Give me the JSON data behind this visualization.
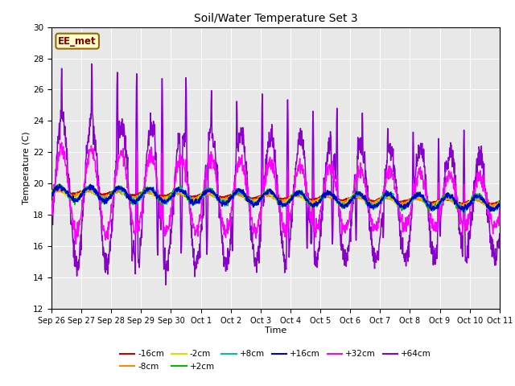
{
  "title": "Soil/Water Temperature Set 3",
  "xlabel": "Time",
  "ylabel": "Temperature (C)",
  "ylim": [
    12,
    30
  ],
  "yticks": [
    12,
    14,
    16,
    18,
    20,
    22,
    24,
    26,
    28,
    30
  ],
  "annotation": "EE_met",
  "fig_facecolor": "#ffffff",
  "plot_bg_color": "#e8e8e8",
  "series": [
    {
      "label": "-16cm",
      "color": "#cc0000",
      "lw": 1.3,
      "zorder": 4
    },
    {
      "label": "-8cm",
      "color": "#ff8800",
      "lw": 1.3,
      "zorder": 4
    },
    {
      "label": "-2cm",
      "color": "#dddd00",
      "lw": 1.3,
      "zorder": 4
    },
    {
      "label": "+2cm",
      "color": "#00bb00",
      "lw": 1.3,
      "zorder": 4
    },
    {
      "label": "+8cm",
      "color": "#00bbbb",
      "lw": 1.3,
      "zorder": 4
    },
    {
      "label": "+16cm",
      "color": "#0000cc",
      "lw": 1.3,
      "zorder": 4
    },
    {
      "label": "+32cm",
      "color": "#ff00ff",
      "lw": 1.1,
      "zorder": 3
    },
    {
      "label": "+64cm",
      "color": "#8800cc",
      "lw": 1.1,
      "zorder": 2
    }
  ],
  "xtick_labels": [
    "Sep 26",
    "Sep 27",
    "Sep 28",
    "Sep 29",
    "Sep 30",
    "Oct 1",
    "Oct 2",
    "Oct 3",
    "Oct 4",
    "Oct 5",
    "Oct 6",
    "Oct 7",
    "Oct 8",
    "Oct 9",
    "Oct 10",
    "Oct 11"
  ],
  "figsize": [
    6.4,
    4.8
  ],
  "dpi": 100
}
